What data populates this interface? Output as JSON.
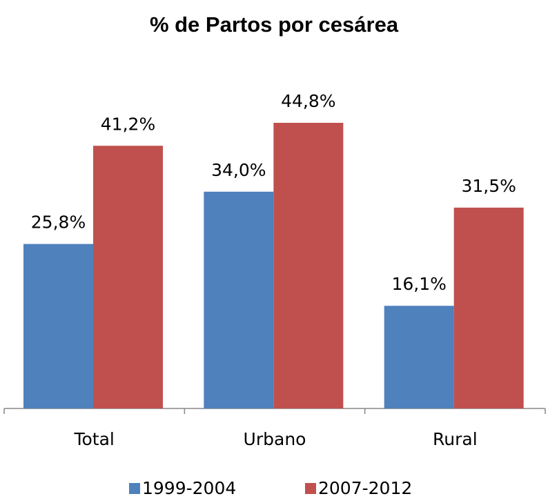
{
  "chart_data": {
    "type": "bar",
    "title": "% de Partos por cesárea",
    "categories": [
      "Total",
      "Urbano",
      "Rural"
    ],
    "series": [
      {
        "name": "1999-2004",
        "color": "#4f81bd",
        "values": [
          25.8,
          34.0,
          16.1
        ],
        "value_labels": [
          "25,8%",
          "34,0%",
          "16,1%"
        ]
      },
      {
        "name": "2007-2012",
        "color": "#c0504d",
        "values": [
          41.2,
          44.8,
          31.5
        ],
        "value_labels": [
          "41,2%",
          "44,8%",
          "31,5%"
        ]
      }
    ]
  }
}
